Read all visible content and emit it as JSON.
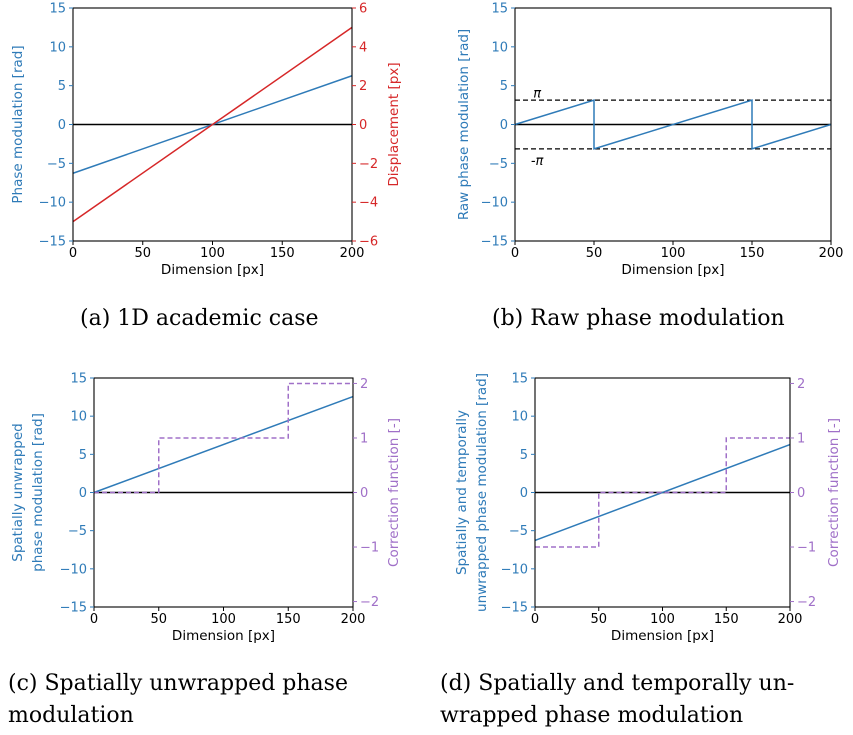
{
  "colors": {
    "blue": "#2f7bb8",
    "red": "#d62728",
    "purple": "#a070c8",
    "black": "#000000",
    "zero_line": "#000000"
  },
  "chart_data": [
    {
      "id": "a",
      "type": "line",
      "caption_id": "(a)",
      "caption_lines": [
        "1D academic case"
      ],
      "xlabel": "Dimension [px]",
      "ylabel": "Phase modulation [rad]",
      "y2label": "Displacement [px]",
      "xlim": [
        0,
        200
      ],
      "ylim": [
        -15,
        15
      ],
      "y2lim": [
        -6,
        6
      ],
      "xticks": [
        "0",
        "50",
        "100",
        "150",
        "200"
      ],
      "yticks": [
        "15",
        "10",
        "5",
        "0",
        "−5",
        "−10",
        "−15"
      ],
      "y2ticks": [
        "6",
        "4",
        "2",
        "0",
        "−2",
        "−4",
        "−6"
      ],
      "zero_line": true,
      "series": [
        {
          "axis": "left",
          "color": "blue",
          "x": [
            0,
            200
          ],
          "y": [
            -6.28,
            6.28
          ]
        },
        {
          "axis": "right",
          "color": "red",
          "x": [
            0,
            200
          ],
          "y": [
            -5,
            5
          ]
        }
      ],
      "annotations": []
    },
    {
      "id": "b",
      "type": "line",
      "caption_id": "(b)",
      "caption_lines": [
        "Raw phase modulation"
      ],
      "xlabel": "Dimension [px]",
      "ylabel": "Raw phase modulation [rad]",
      "xlim": [
        0,
        200
      ],
      "ylim": [
        -15,
        15
      ],
      "xticks": [
        "0",
        "50",
        "100",
        "150",
        "200"
      ],
      "yticks": [
        "15",
        "10",
        "5",
        "0",
        "−5",
        "−10",
        "−15"
      ],
      "zero_line": true,
      "series": [
        {
          "axis": "left",
          "color": "blue",
          "x": [
            0,
            50,
            50,
            150,
            150,
            200
          ],
          "y": [
            0,
            3.14,
            -3.14,
            3.14,
            -3.14,
            0
          ]
        }
      ],
      "hlines": [
        {
          "y": 3.14,
          "style": "dashed",
          "color": "black"
        },
        {
          "y": -3.14,
          "style": "dashed",
          "color": "black"
        }
      ],
      "annotations": [
        {
          "text": "π",
          "x": 14,
          "y": 4.1
        },
        {
          "text": "-π",
          "x": 14,
          "y": -4.6
        }
      ]
    },
    {
      "id": "c",
      "type": "line",
      "caption_id": "(c)",
      "caption_lines": [
        "Spatially unwrapped phase",
        "modulation"
      ],
      "xlabel": "Dimension [px]",
      "ylabel_lines": [
        "Spatially unwrapped",
        "phase modulation [rad]"
      ],
      "y2label": "Correction function [-]",
      "xlim": [
        0,
        200
      ],
      "ylim": [
        -15,
        15
      ],
      "y2lim": [
        -2.1,
        2.1
      ],
      "xticks": [
        "0",
        "50",
        "100",
        "150",
        "200"
      ],
      "yticks": [
        "15",
        "10",
        "5",
        "0",
        "−5",
        "−10",
        "−15"
      ],
      "y2ticks": [
        "2",
        "1",
        "0",
        "−1",
        "−2"
      ],
      "zero_line": true,
      "series": [
        {
          "axis": "left",
          "color": "blue",
          "x": [
            0,
            200
          ],
          "y": [
            0,
            12.57
          ]
        },
        {
          "axis": "right",
          "color": "purple",
          "style": "dashed",
          "x": [
            0,
            50,
            50,
            150,
            150,
            200
          ],
          "y": [
            0,
            0,
            1,
            1,
            2,
            2
          ]
        }
      ],
      "annotations": []
    },
    {
      "id": "d",
      "type": "line",
      "caption_id": "(d)",
      "caption_lines": [
        "Spatially and temporally un-",
        "wrapped phase modulation"
      ],
      "xlabel": "Dimension [px]",
      "ylabel_lines": [
        "Spatially and temporally",
        "unwrapped phase modulation [rad]"
      ],
      "y2label": "Correction function [-]",
      "xlim": [
        0,
        200
      ],
      "ylim": [
        -15,
        15
      ],
      "y2lim": [
        -2.1,
        2.1
      ],
      "xticks": [
        "0",
        "50",
        "100",
        "150",
        "200"
      ],
      "yticks": [
        "15",
        "10",
        "5",
        "0",
        "−5",
        "−10",
        "−15"
      ],
      "y2ticks": [
        "2",
        "1",
        "0",
        "−1",
        "−2"
      ],
      "zero_line": true,
      "series": [
        {
          "axis": "left",
          "color": "blue",
          "x": [
            0,
            200
          ],
          "y": [
            -6.28,
            6.28
          ]
        },
        {
          "axis": "right",
          "color": "purple",
          "style": "dashed",
          "x": [
            0,
            50,
            50,
            150,
            150,
            200
          ],
          "y": [
            -1,
            -1,
            0,
            0,
            1,
            1
          ]
        }
      ],
      "annotations": []
    }
  ]
}
